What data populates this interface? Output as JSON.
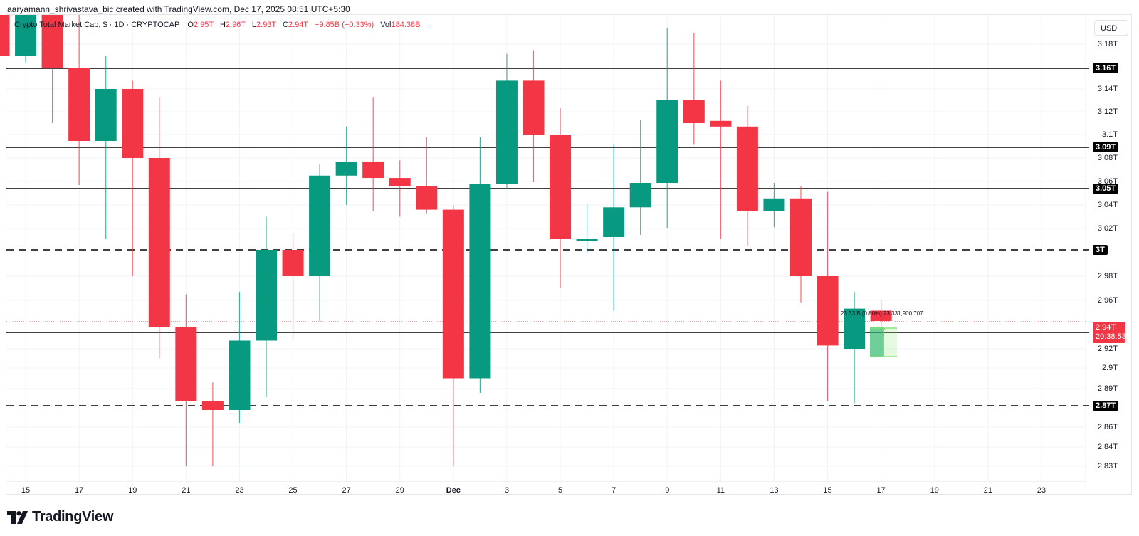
{
  "credit": "aaryamann_shrivastava_bic created with TradingView.com, Dec 17, 2025 08:51 UTC+5:30",
  "legend": {
    "symbol": "Crypto Total Market Cap, $ · 1D · CRYPTOCAP",
    "open_label": "O",
    "open": "2.95T",
    "high_label": "H",
    "high": "2.96T",
    "low_label": "L",
    "low": "2.93T",
    "close_label": "C",
    "close": "2.94T",
    "change": "−9.85B (−0.33%)",
    "vol_label": "Vol",
    "volume": "184.38B"
  },
  "currency_button": "USD",
  "last_price": {
    "price": "2.94T",
    "countdown": "20:38:53",
    "color": "#f23645"
  },
  "measure_tool": {
    "text": "23.33 B (0.80%) 23,331,900,707",
    "color": "#7ee06a"
  },
  "brand": {
    "name": "TradingView"
  },
  "colors": {
    "up": "#089981",
    "down": "#f23645",
    "line": "#000000",
    "grid": "#f0f3fa"
  },
  "chart_data": {
    "type": "candlestick",
    "title": "Crypto Total Market Cap, $ · 1D · CRYPTOCAP",
    "ylabel": "USD",
    "ylim": [
      2.82,
      3.2
    ],
    "y_ticks": [
      "3.18T",
      "3.14T",
      "3.12T",
      "3.1T",
      "3.08T",
      "3.06T",
      "3.04T",
      "3.02T",
      "2.98T",
      "2.96T",
      "2.92T",
      "2.9T",
      "2.89T",
      "2.86T",
      "2.84T",
      "2.83T"
    ],
    "x_ticks": [
      "15",
      "17",
      "19",
      "21",
      "23",
      "25",
      "27",
      "29",
      "Dec",
      "3",
      "5",
      "7",
      "9",
      "11",
      "13",
      "15",
      "17",
      "19",
      "21",
      "23"
    ],
    "horizontal_levels": [
      {
        "price": "3.16T",
        "style": "solid"
      },
      {
        "price": "3.09T",
        "style": "solid"
      },
      {
        "price": "3.05T",
        "style": "solid"
      },
      {
        "price": "3T",
        "style": "dashed"
      },
      {
        "price": "2.93T",
        "style": "solid"
      },
      {
        "price": "2.87T",
        "style": "dashed"
      }
    ],
    "candles": [
      {
        "date": "Nov 14",
        "o": 3.25,
        "h": 3.26,
        "l": 3.17,
        "c": 3.17
      },
      {
        "date": "Nov 15",
        "o": 3.17,
        "h": 3.21,
        "l": 3.165,
        "c": 3.22
      },
      {
        "date": "Nov 16",
        "o": 3.23,
        "h": 3.24,
        "l": 3.11,
        "c": 3.16
      },
      {
        "date": "Nov 17",
        "o": 3.16,
        "h": 3.22,
        "l": 3.055,
        "c": 3.095
      },
      {
        "date": "Nov 18",
        "o": 3.095,
        "h": 3.17,
        "l": 3.01,
        "c": 3.14
      },
      {
        "date": "Nov 19",
        "o": 3.14,
        "h": 3.148,
        "l": 2.98,
        "c": 3.08
      },
      {
        "date": "Nov 20",
        "o": 3.08,
        "h": 3.133,
        "l": 2.91,
        "c": 2.935
      },
      {
        "date": "Nov 21",
        "o": 2.935,
        "h": 2.965,
        "l": 2.83,
        "c": 2.875
      },
      {
        "date": "Nov 22",
        "o": 2.875,
        "h": 2.893,
        "l": 2.83,
        "c": 2.868
      },
      {
        "date": "Nov 23",
        "o": 2.868,
        "h": 2.967,
        "l": 2.862,
        "c": 2.925
      },
      {
        "date": "Nov 24",
        "o": 2.925,
        "h": 3.03,
        "l": 2.88,
        "c": 3.0
      },
      {
        "date": "Nov 25",
        "o": 3.0,
        "h": 3.015,
        "l": 2.925,
        "c": 2.98
      },
      {
        "date": "Nov 26",
        "o": 2.98,
        "h": 3.075,
        "l": 2.94,
        "c": 3.065
      },
      {
        "date": "Nov 27",
        "o": 3.065,
        "h": 3.107,
        "l": 3.04,
        "c": 3.077
      },
      {
        "date": "Nov 28",
        "o": 3.077,
        "h": 3.133,
        "l": 3.035,
        "c": 3.063
      },
      {
        "date": "Nov 29",
        "o": 3.063,
        "h": 3.078,
        "l": 3.03,
        "c": 3.053
      },
      {
        "date": "Nov 30",
        "o": 3.053,
        "h": 3.098,
        "l": 3.033,
        "c": 3.036
      },
      {
        "date": "Dec 1",
        "o": 3.036,
        "h": 3.04,
        "l": 2.83,
        "c": 2.895
      },
      {
        "date": "Dec 2",
        "o": 2.895,
        "h": 3.098,
        "l": 2.885,
        "c": 3.057
      },
      {
        "date": "Dec 3",
        "o": 3.057,
        "h": 3.172,
        "l": 3.05,
        "c": 3.148
      },
      {
        "date": "Dec 4",
        "o": 3.148,
        "h": 3.175,
        "l": 3.06,
        "c": 3.1
      },
      {
        "date": "Dec 5",
        "o": 3.1,
        "h": 3.123,
        "l": 2.97,
        "c": 3.01
      },
      {
        "date": "Dec 6",
        "o": 3.008,
        "h": 3.041,
        "l": 2.997,
        "c": 3.01
      },
      {
        "date": "Dec 7",
        "o": 3.012,
        "h": 3.092,
        "l": 2.95,
        "c": 3.038
      },
      {
        "date": "Dec 8",
        "o": 3.038,
        "h": 3.113,
        "l": 3.014,
        "c": 3.058
      },
      {
        "date": "Dec 9",
        "o": 3.058,
        "h": 3.195,
        "l": 3.02,
        "c": 3.13
      },
      {
        "date": "Dec 10",
        "o": 3.13,
        "h": 3.19,
        "l": 3.092,
        "c": 3.11
      },
      {
        "date": "Dec 11",
        "o": 3.112,
        "h": 3.148,
        "l": 3.01,
        "c": 3.107
      },
      {
        "date": "Dec 12",
        "o": 3.107,
        "h": 3.125,
        "l": 3.004,
        "c": 3.035
      },
      {
        "date": "Dec 13",
        "o": 3.035,
        "h": 3.058,
        "l": 3.021,
        "c": 3.044
      },
      {
        "date": "Dec 14",
        "o": 3.044,
        "h": 3.053,
        "l": 2.958,
        "c": 2.98
      },
      {
        "date": "Dec 15",
        "o": 2.98,
        "h": 3.048,
        "l": 2.875,
        "c": 2.922
      },
      {
        "date": "Dec 16",
        "o": 2.92,
        "h": 2.967,
        "l": 2.873,
        "c": 2.952
      },
      {
        "date": "Dec 17",
        "o": 2.95,
        "h": 2.96,
        "l": 2.93,
        "c": 2.94
      }
    ]
  }
}
